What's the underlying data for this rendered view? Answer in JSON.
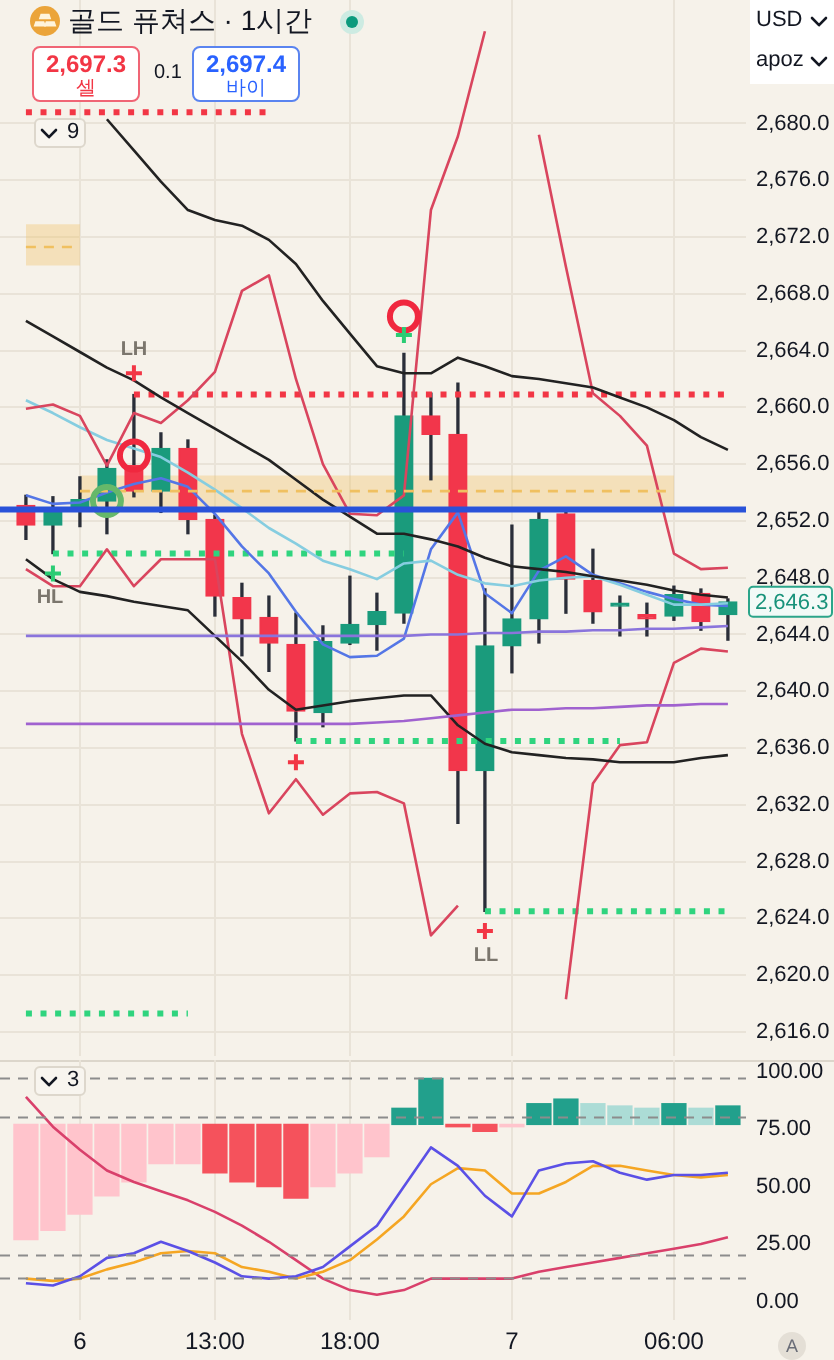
{
  "chart_data": [
    {
      "type": "candlestick",
      "title": "골드 퓨쳐스 · 1시간",
      "categories": [
        null,
        null,
        null,
        null,
        null,
        null,
        null,
        null,
        null,
        null,
        null,
        null,
        null,
        null,
        null,
        null,
        null,
        null,
        null,
        null,
        null,
        null,
        null,
        null,
        null,
        null,
        null
      ],
      "ohlc": [
        [
          2653.1,
          2653.8,
          2650.7,
          2651.7
        ],
        [
          2651.7,
          2653.7,
          2649.7,
          2652.8
        ],
        [
          2652.8,
          2655.1,
          2651.6,
          2653.5
        ],
        [
          2653.4,
          2656.3,
          2651.1,
          2655.7
        ],
        [
          2655.9,
          2660.9,
          2653.7,
          2654.1
        ],
        [
          2654.1,
          2658.2,
          2652.6,
          2657.1
        ],
        [
          2657.1,
          2657.7,
          2651.1,
          2652.1
        ],
        [
          2652.1,
          2652.4,
          2645.3,
          2646.7
        ],
        [
          2646.6,
          2647.6,
          2642.5,
          2645.1
        ],
        [
          2645.2,
          2646.7,
          2641.4,
          2643.4
        ],
        [
          2643.3,
          2645.5,
          2636.5,
          2638.6
        ],
        [
          2638.5,
          2644.6,
          2637.5,
          2643.5
        ],
        [
          2643.4,
          2648.1,
          2643.3,
          2644.7
        ],
        [
          2644.7,
          2646.9,
          2642.9,
          2645.6
        ],
        [
          2645.5,
          2663.8,
          2644.8,
          2659.4
        ],
        [
          2659.4,
          2661.0,
          2654.9,
          2658.1
        ],
        [
          2658.1,
          2661.7,
          2630.7,
          2634.4
        ],
        [
          2634.4,
          2647.2,
          2624.5,
          2643.2
        ],
        [
          2643.2,
          2651.7,
          2641.3,
          2645.1
        ],
        [
          2645.1,
          2652.6,
          2643.4,
          2652.1
        ],
        [
          2652.5,
          2652.6,
          2645.5,
          2647.9
        ],
        [
          2647.8,
          2650.0,
          2644.8,
          2645.6
        ],
        [
          2646.0,
          2646.7,
          2643.9,
          2646.2
        ],
        [
          2645.4,
          2646.2,
          2643.9,
          2645.1
        ],
        [
          2645.3,
          2647.4,
          2645.0,
          2646.8
        ],
        [
          2646.9,
          2647.2,
          2644.3,
          2644.9
        ],
        [
          2645.4,
          2646.5,
          2643.6,
          2646.3
        ]
      ],
      "colors": [
        "#f2364b",
        "#1a9b7c",
        "#1a9b7c",
        "#1a9b7c",
        "#f2364b",
        "#1a9b7c",
        "#f2364b",
        "#f2364b",
        "#f2364b",
        "#f2364b",
        "#f2364b",
        "#1a9b7c",
        "#1a9b7c",
        "#1a9b7c",
        "#1a9b7c",
        "#f2364b",
        "#f2364b",
        "#1a9b7c",
        "#1a9b7c",
        "#1a9b7c",
        "#f2364b",
        "#f2364b",
        "#1a9b7c",
        "#f2364b",
        "#1a9b7c",
        "#f2364b",
        "#1a9b7c"
      ],
      "series": [
        {
          "type": "line",
          "color": "#f0c060",
          "line_style": "dashed",
          "values": [
            2671.3,
            2671.3,
            2671.3,
            null,
            null,
            null,
            null,
            null,
            null,
            null,
            null,
            null,
            null,
            null,
            null,
            null,
            null,
            null,
            null,
            null,
            null,
            null,
            null,
            null,
            null,
            null,
            null
          ],
          "lower": [
            2670.0,
            2670.0,
            2670.0,
            null,
            null,
            null,
            null,
            null,
            null,
            null,
            null,
            null,
            null,
            null,
            null,
            null,
            null,
            null,
            null,
            null,
            null,
            null,
            null,
            null,
            null,
            null,
            null
          ],
          "upper": [
            2672.9,
            2672.9,
            2672.9,
            null,
            null,
            null,
            null,
            null,
            null,
            null,
            null,
            null,
            null,
            null,
            null,
            null,
            null,
            null,
            null,
            null,
            null,
            null,
            null,
            null,
            null,
            null,
            null
          ]
        },
        {
          "type": "line",
          "color": "#f0c060",
          "line_style": "dashed",
          "values": [
            null,
            null,
            2654.1,
            2654.1,
            2654.1,
            2654.1,
            2654.1,
            2654.1,
            2654.1,
            2654.1,
            2654.1,
            2654.1,
            2654.1,
            2654.1,
            2654.1,
            2654.1,
            2654.1,
            2654.1,
            2654.1,
            2654.1,
            2654.1,
            2654.1,
            2654.1,
            2654.1,
            2654.1,
            null,
            null
          ],
          "lower": [
            null,
            null,
            2653.0,
            2653.0,
            2653.0,
            2653.0,
            2653.0,
            2653.0,
            2653.0,
            2653.0,
            2653.0,
            2653.0,
            2653.0,
            2653.0,
            2653.0,
            2653.0,
            2653.0,
            2653.0,
            2653.0,
            2653.0,
            2653.0,
            2653.0,
            2653.0,
            2653.0,
            2653.0,
            null,
            null
          ],
          "upper": [
            null,
            null,
            2655.2,
            2655.2,
            2655.2,
            2655.2,
            2655.2,
            2655.2,
            2655.2,
            2655.2,
            2655.2,
            2655.2,
            2655.2,
            2655.2,
            2655.2,
            2655.2,
            2655.2,
            2655.2,
            2655.2,
            2655.2,
            2655.2,
            2655.2,
            2655.2,
            2655.2,
            2655.2,
            null,
            null
          ]
        },
        {
          "type": "line",
          "color": "#a062cf",
          "values": [
            2637.7,
            2637.7,
            2637.7,
            2637.7,
            2637.7,
            2637.7,
            2637.7,
            2637.7,
            2637.7,
            2637.7,
            2637.7,
            2637.7,
            2637.7,
            2637.8,
            2637.9,
            2638.1,
            2638.3,
            2638.5,
            2638.7,
            2638.7,
            2638.8,
            2638.8,
            2638.9,
            2639.0,
            2639.0,
            2639.1,
            2639.1
          ]
        },
        {
          "type": "line",
          "color": "#8a74dc",
          "values": [
            2643.9,
            2643.9,
            2643.9,
            2643.9,
            2643.9,
            2643.9,
            2643.9,
            2643.9,
            2643.9,
            2643.9,
            2643.9,
            2643.9,
            2643.9,
            2643.9,
            2643.9,
            2644.0,
            2644.0,
            2644.1,
            2644.1,
            2644.2,
            2644.2,
            2644.3,
            2644.3,
            2644.4,
            2644.4,
            2644.5,
            2644.6
          ]
        },
        {
          "type": "line",
          "color": "#222222",
          "values": [
            null,
            null,
            null,
            2680.3,
            2678.1,
            2675.9,
            2673.9,
            2673.2,
            2672.8,
            2671.8,
            2670.1,
            2667.5,
            2665.2,
            2662.9,
            2662.4,
            2662.4,
            2663.5,
            2662.9,
            2662.2,
            2662.0,
            2661.7,
            2661.4,
            2660.7,
            2660.0,
            2659.1,
            2657.9,
            2657.0
          ]
        },
        {
          "type": "line",
          "color": "#222222",
          "values": [
            2666.1,
            2665.0,
            2663.9,
            2662.8,
            2661.9,
            2660.7,
            2659.6,
            2658.5,
            2657.4,
            2656.3,
            2654.9,
            2653.5,
            2652.3,
            2651.1,
            2651.1,
            2650.7,
            2650.2,
            2649.4,
            2648.8,
            2648.6,
            2648.4,
            2648.1,
            2647.8,
            2647.5,
            2647.1,
            2646.8,
            2646.6
          ]
        },
        {
          "type": "line",
          "color": "#222222",
          "values": [
            2649.3,
            2647.9,
            2647.0,
            2646.7,
            2646.3,
            2646.0,
            2645.7,
            2643.9,
            2642.1,
            2640.1,
            2638.7,
            2639.0,
            2639.3,
            2639.5,
            2639.7,
            2639.7,
            2637.6,
            2636.3,
            2635.7,
            2635.5,
            2635.3,
            2635.2,
            2635.0,
            2635.0,
            2635.0,
            2635.3,
            2635.5
          ]
        },
        {
          "type": "line",
          "color": "#d9455e",
          "values": [
            2659.9,
            2660.2,
            2659.4,
            2655.9,
            2659.6,
            2658.9,
            2660.5,
            2662.5,
            2668.2,
            2669.3,
            2662.0,
            2656.0,
            2652.5,
            2652.4,
            2653.8,
            2673.9,
            2679.1,
            2686.5,
            null,
            2679.2,
            2669.9,
            2661.0,
            2659.4,
            2657.3,
            2649.7,
            2648.6,
            2648.7
          ]
        },
        {
          "type": "line",
          "color": "#d9455e",
          "values": [
            2648.6,
            2647.4,
            2647.4,
            2650.0,
            2647.4,
            2649.3,
            2649.3,
            2649.3,
            2637.0,
            2631.4,
            2633.8,
            2631.3,
            2632.8,
            2632.9,
            2632.1,
            2622.8,
            2624.9,
            null,
            null,
            null,
            2618.3,
            2633.5,
            2636.2,
            2636.4,
            2642.0,
            2643.0,
            2642.8
          ]
        },
        {
          "type": "line",
          "color": "#86cde0",
          "values": [
            2660.5,
            2659.6,
            2658.6,
            2657.7,
            2657.1,
            2656.5,
            2655.4,
            2654.2,
            2652.9,
            2651.5,
            2650.4,
            2649.2,
            2648.6,
            2647.9,
            2649.0,
            2649.2,
            2648.2,
            2647.6,
            2647.4,
            2647.8,
            2648.0,
            2648.1,
            2647.5,
            2646.8,
            2646.1,
            2646.1,
            2646.2
          ]
        },
        {
          "type": "line",
          "color": "#5476e6",
          "values": [
            2653.8,
            2653.2,
            2653.3,
            2654.0,
            2654.6,
            2655.0,
            2654.4,
            2652.5,
            2650.2,
            2648.3,
            2645.6,
            2643.3,
            2642.4,
            2642.5,
            2643.7,
            2650.0,
            2652.6,
            2646.9,
            2645.5,
            2648.5,
            2649.5,
            2648.2,
            2647.6,
            2647.0,
            2646.5,
            2646.1,
            2646.0
          ]
        },
        {
          "type": "line",
          "color": "#f23645",
          "line_style": "dotted",
          "values": [
            2680.8,
            2680.8,
            2680.8,
            2680.8,
            2680.8,
            2680.8,
            2680.8,
            2680.8,
            2680.8,
            2680.8,
            null,
            null,
            null,
            null,
            null,
            null,
            null,
            null,
            null,
            null,
            null,
            null,
            null,
            null,
            null,
            null,
            null
          ]
        },
        {
          "type": "line",
          "color": "#f23645",
          "line_style": "dotted",
          "values": [
            null,
            null,
            null,
            null,
            2660.9,
            2660.9,
            2660.9,
            2660.9,
            2660.9,
            2660.9,
            2660.9,
            2660.9,
            2660.9,
            2660.9,
            2660.9,
            2660.9,
            2660.9,
            2660.9,
            2660.9,
            2660.9,
            2660.9,
            2660.9,
            2660.9,
            2660.9,
            2660.9,
            2660.9,
            2660.9
          ]
        },
        {
          "type": "line",
          "color": "#2fd47e",
          "line_style": "dotted",
          "values": [
            null,
            2649.7,
            2649.7,
            2649.7,
            2649.7,
            2649.7,
            2649.7,
            2649.7,
            2649.7,
            2649.7,
            2649.7,
            2649.7,
            2649.7,
            2649.7,
            2649.7,
            null,
            null,
            null,
            null,
            null,
            null,
            null,
            null,
            null,
            null,
            null,
            null
          ]
        },
        {
          "type": "line",
          "color": "#2fd47e",
          "line_style": "dotted",
          "values": [
            null,
            null,
            null,
            null,
            null,
            null,
            null,
            null,
            null,
            null,
            2636.5,
            2636.5,
            2636.5,
            2636.5,
            2636.5,
            2636.5,
            2636.5,
            2636.5,
            2636.5,
            2636.5,
            2636.5,
            2636.5,
            2636.5,
            null,
            null,
            null,
            null
          ]
        },
        {
          "type": "line",
          "color": "#2fd47e",
          "line_style": "dotted",
          "values": [
            null,
            null,
            null,
            null,
            null,
            null,
            null,
            null,
            null,
            null,
            null,
            null,
            null,
            null,
            null,
            null,
            null,
            2624.5,
            2624.5,
            2624.5,
            2624.5,
            2624.5,
            2624.5,
            2624.5,
            2624.5,
            2624.5,
            2624.5
          ]
        },
        {
          "type": "line",
          "color": "#2fd47e",
          "line_style": "dotted",
          "values": [
            2617.3,
            2617.3,
            2617.3,
            2617.3,
            2617.3,
            2617.3,
            2617.3,
            null,
            null,
            null,
            null,
            null,
            null,
            null,
            null,
            null,
            null,
            null,
            null,
            null,
            null,
            null,
            null,
            null,
            null,
            null,
            null
          ]
        },
        {
          "type": "scatter",
          "color": "#f23645",
          "marker": "cross",
          "values": [
            null,
            null,
            null,
            null,
            2662.4,
            null,
            null,
            null,
            null,
            null,
            2635.0,
            null,
            null,
            null,
            null,
            null,
            null,
            2623.1,
            null,
            null,
            null,
            null,
            null,
            null,
            null,
            null,
            null
          ]
        },
        {
          "type": "scatter",
          "color": "#2bcc74",
          "marker": "cross",
          "values": [
            null,
            2648.3,
            null,
            null,
            null,
            null,
            null,
            null,
            null,
            null,
            null,
            null,
            null,
            null,
            2665.1,
            null,
            null,
            null,
            null,
            null,
            null,
            null,
            null,
            null,
            null,
            null,
            null
          ]
        },
        {
          "type": "scatter",
          "color": "#f0283f",
          "marker": "circle",
          "values": [
            null,
            null,
            null,
            null,
            2656.6,
            null,
            null,
            null,
            null,
            null,
            null,
            null,
            null,
            null,
            2666.4,
            null,
            null,
            null,
            null,
            null,
            null,
            null,
            null,
            null,
            null,
            null,
            null
          ]
        },
        {
          "type": "scatter",
          "color": "#66b86a",
          "marker": "circle",
          "values": [
            null,
            null,
            null,
            2653.4,
            null,
            null,
            null,
            null,
            null,
            null,
            null,
            null,
            null,
            null,
            null,
            null,
            null,
            null,
            null,
            null,
            null,
            null,
            null,
            null,
            null,
            null,
            null
          ]
        }
      ],
      "ref_lines": [
        {
          "axis": "y",
          "value": 2652.8,
          "color": "#2952d9"
        }
      ],
      "ylim": [
        2614.3,
        2688.7
      ],
      "yticks": [
        {
          "value": 2616,
          "label": "2,616.0"
        },
        {
          "value": 2620,
          "label": "2,620.0"
        },
        {
          "value": 2624,
          "label": "2,624.0"
        },
        {
          "value": 2628,
          "label": "2,628.0"
        },
        {
          "value": 2632,
          "label": "2,632.0"
        },
        {
          "value": 2636,
          "label": "2,636.0"
        },
        {
          "value": 2640,
          "label": "2,640.0"
        },
        {
          "value": 2644,
          "label": "2,644.0"
        },
        {
          "value": 2648,
          "label": "2,648.0"
        },
        {
          "value": 2652,
          "label": "2,652.0"
        },
        {
          "value": 2656,
          "label": "2,656.0"
        },
        {
          "value": 2660,
          "label": "2,660.0"
        },
        {
          "value": 2664,
          "label": "2,664.0"
        },
        {
          "value": 2668,
          "label": "2,668.0"
        },
        {
          "value": 2672,
          "label": "2,672.0"
        },
        {
          "value": 2676,
          "label": "2,676.0"
        },
        {
          "value": 2680,
          "label": "2,680.0"
        }
      ],
      "grid": true,
      "tick_labels": "y",
      "marker": "none",
      "annotations": [
        "LH",
        "HL",
        "LL",
        {
          "text": "2,646.3",
          "y": 2646.3
        },
        "2,697.3",
        "셀",
        "0.1",
        "2,697.4",
        "바이",
        "USD",
        "apoz",
        "9"
      ]
    },
    {
      "type": "bar",
      "categories": [
        null,
        null,
        "6",
        null,
        null,
        null,
        null,
        "13:00",
        null,
        null,
        null,
        null,
        "18:00",
        null,
        null,
        null,
        null,
        null,
        "7",
        null,
        null,
        null,
        null,
        null,
        "06:00",
        null,
        null
      ],
      "series": [
        {
          "base": [
            77,
            77,
            77,
            77,
            77,
            77,
            77,
            77,
            77,
            77,
            77,
            77,
            77,
            77,
            77,
            77,
            77,
            77,
            77,
            77,
            77,
            77,
            77,
            77,
            77,
            77,
            77
          ],
          "values": [
            -50,
            -46,
            -39,
            -31,
            -25,
            -17,
            -17,
            -21,
            -25,
            -27,
            -32,
            -27,
            -21,
            -14,
            7,
            20,
            -1,
            -3,
            -1,
            9,
            11,
            9,
            8,
            7,
            9,
            7,
            8
          ],
          "colors": [
            "#ffc4cc",
            "#ffc4cc",
            "#ffc4cc",
            "#ffc4cc",
            "#ffc4cc",
            "#ffc4cc",
            "#ffc4cc",
            "#f5525c",
            "#f5525c",
            "#f5525c",
            "#f5525c",
            "#ffc4cc",
            "#ffc4cc",
            "#ffc4cc",
            "#22a08c",
            "#22a08c",
            "#f5525c",
            "#f5525c",
            "#ffc4cc",
            "#22a08c",
            "#22a08c",
            "#acdcd6",
            "#acdcd6",
            "#acdcd6",
            "#22a08c",
            "#acdcd6",
            "#22a08c"
          ]
        },
        {
          "type": "line",
          "color": "#5b50e6",
          "values": [
            8,
            7,
            11,
            19,
            21,
            26,
            22,
            17,
            11,
            10,
            11,
            15,
            24,
            33,
            50,
            67,
            59,
            46,
            37,
            57,
            60,
            61,
            56,
            53,
            55,
            55,
            56
          ]
        },
        {
          "type": "line",
          "color": "#f5a623",
          "values": [
            10,
            9,
            10,
            14,
            17,
            21,
            22,
            21,
            15,
            13,
            10,
            13,
            18,
            27,
            37,
            51,
            58,
            57,
            47,
            47,
            52,
            59,
            59,
            57,
            55,
            54,
            55
          ]
        },
        {
          "type": "line",
          "color": "#d9406b",
          "values": [
            89,
            76,
            66,
            57,
            52,
            48,
            44,
            39,
            33,
            26,
            18,
            10,
            5,
            3,
            5,
            10,
            10,
            10,
            10,
            13,
            15,
            17,
            19,
            21,
            23,
            25,
            28
          ]
        }
      ],
      "ref_lines": [
        {
          "axis": "y",
          "value": 97,
          "color": "#8c8c8c",
          "line_style": "dashed"
        },
        {
          "axis": "y",
          "value": 80,
          "color": "#8c8c8c",
          "line_style": "dashed"
        },
        {
          "axis": "y",
          "value": 20,
          "color": "#8c8c8c",
          "line_style": "dashed"
        },
        {
          "axis": "y",
          "value": 10,
          "color": "#8c8c8c",
          "line_style": "dashed"
        }
      ],
      "ylim": [
        -8,
        105
      ],
      "yticks": [
        {
          "value": 0,
          "label": "0.00"
        },
        {
          "value": 25,
          "label": "25.00"
        },
        {
          "value": 50,
          "label": "50.00"
        },
        {
          "value": 75,
          "label": "75.00"
        },
        {
          "value": 100,
          "label": "100.00"
        }
      ],
      "grid": "x",
      "marker": "none",
      "annotations": [
        "3",
        "A"
      ]
    }
  ]
}
